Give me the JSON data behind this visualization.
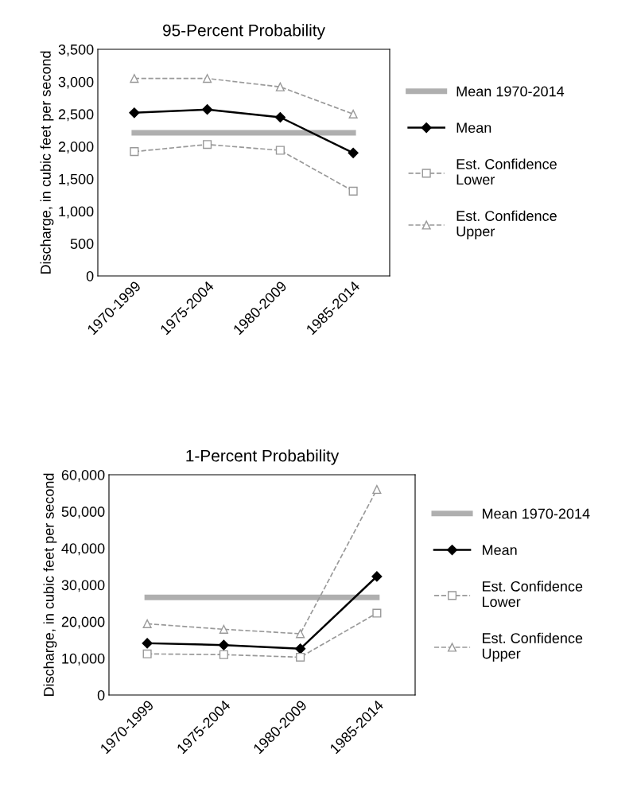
{
  "chart_data": [
    {
      "type": "line",
      "title": "95-Percent Probability",
      "ylabel": "Discharge, in cubic feet per second",
      "categories": [
        "1970-1999",
        "1975-2004",
        "1980-2009",
        "1985-2014"
      ],
      "ylim": [
        0,
        3500
      ],
      "yticks": [
        0,
        {
          "value": 500,
          "label": "500"
        },
        {
          "value": 1000,
          "label": "1,000"
        },
        {
          "value": 1500,
          "label": "1,500"
        },
        {
          "value": 2000,
          "label": "2,000"
        },
        {
          "value": 2500,
          "label": "2,500"
        },
        {
          "value": 3000,
          "label": "3,000"
        },
        {
          "value": 3500,
          "label": "3,500"
        }
      ],
      "grid": false,
      "legend": "right",
      "series": [
        {
          "name": "Mean 1970-2014",
          "color": "#a6a6a6",
          "marker": "none",
          "line_style": "solid",
          "values": [
            2210,
            2210,
            2210,
            2210
          ]
        },
        {
          "name": "Mean",
          "color": "#000000",
          "marker": "diamond",
          "line_style": "solid",
          "values": [
            2520,
            2570,
            2450,
            1900
          ]
        },
        {
          "name": "Est. Confidence Lower",
          "color": "#999999",
          "marker": "square",
          "line_style": "dashed",
          "values": [
            1920,
            2030,
            1940,
            1310
          ]
        },
        {
          "name": "Est. Confidence Upper",
          "color": "#999999",
          "marker": "triangle",
          "line_style": "dashed",
          "values": [
            3050,
            3050,
            2920,
            2500
          ]
        }
      ]
    },
    {
      "type": "line",
      "title": "1-Percent Probability",
      "ylabel": "Discharge, in cubic feet per second",
      "categories": [
        "1970-1999",
        "1975-2004",
        "1980-2009",
        "1985-2014"
      ],
      "ylim": [
        0,
        60000
      ],
      "yticks": [
        0,
        {
          "value": 10000,
          "label": "10,000"
        },
        {
          "value": 20000,
          "label": "20,000"
        },
        {
          "value": 30000,
          "label": "30,000"
        },
        {
          "value": 40000,
          "label": "40,000"
        },
        {
          "value": 50000,
          "label": "50,000"
        },
        {
          "value": 60000,
          "label": "60,000"
        }
      ],
      "grid": false,
      "legend": "right",
      "series": [
        {
          "name": "Mean 1970-2014",
          "color": "#a6a6a6",
          "marker": "none",
          "line_style": "solid",
          "values": [
            26600,
            26600,
            26600,
            26600
          ]
        },
        {
          "name": "Mean",
          "color": "#000000",
          "marker": "diamond",
          "line_style": "solid",
          "values": [
            14100,
            13600,
            12600,
            32300
          ]
        },
        {
          "name": "Est. Confidence Lower",
          "color": "#999999",
          "marker": "square",
          "line_style": "dashed",
          "values": [
            11200,
            11000,
            10300,
            22300
          ]
        },
        {
          "name": "Est. Confidence Upper",
          "color": "#999999",
          "marker": "triangle",
          "line_style": "dashed",
          "values": [
            19400,
            17900,
            16700,
            56000
          ]
        }
      ]
    }
  ]
}
